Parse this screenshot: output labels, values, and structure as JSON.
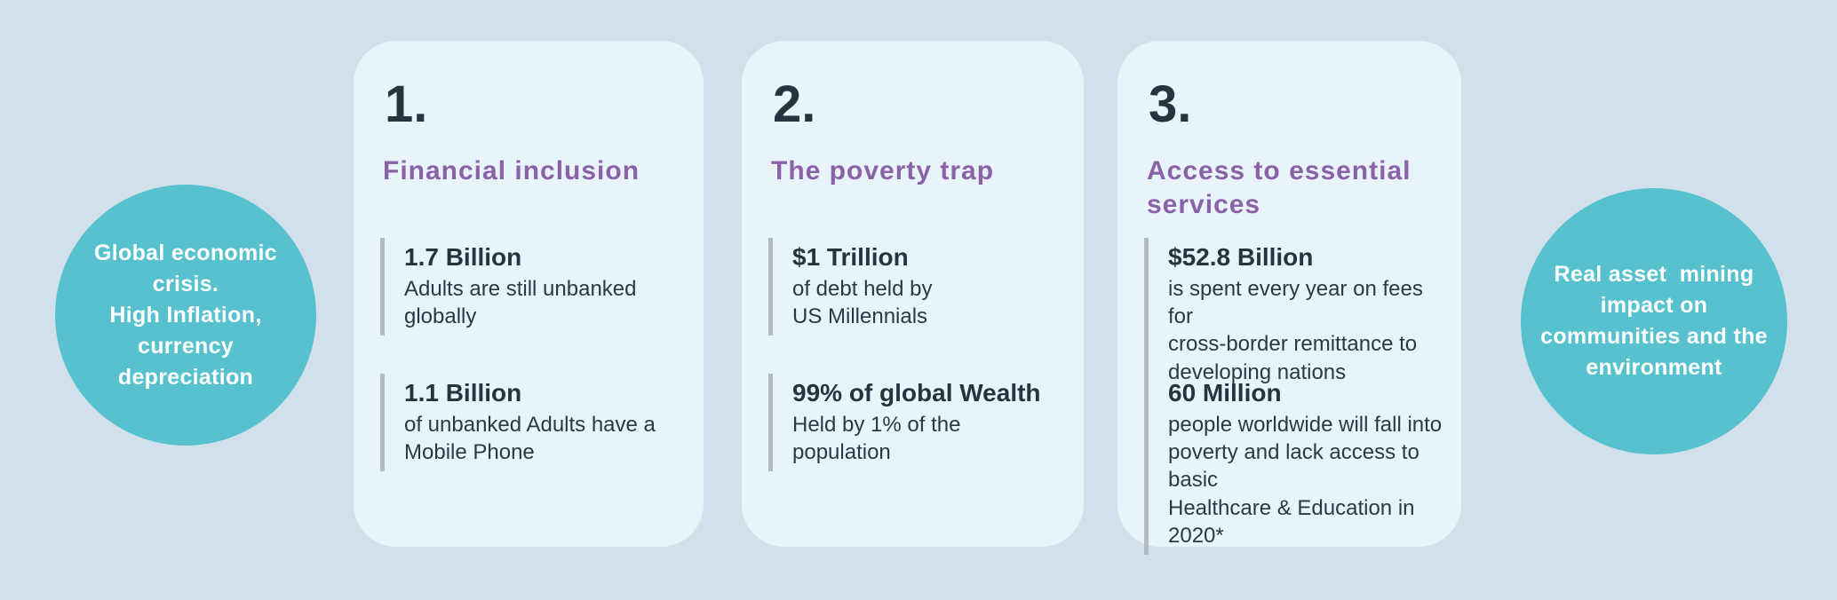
{
  "colors": {
    "background": "#d2e0eb",
    "card_background": "#e9f3fa",
    "accent_teal": "#57c2ce",
    "accent_purple": "#8a62a8",
    "text_dark_navy": "#263440",
    "stat_bar_gray": "#b3bcc2",
    "circle_text": "#ffffff"
  },
  "left_circle": {
    "text": "Global economic\ncrisis.\nHigh Inflation,\ncurrency\ndepreciation"
  },
  "right_circle": {
    "text": "Real asset  mining\nimpact on\ncommunities and the\nenvironment"
  },
  "cards": [
    {
      "number": "1.",
      "title": "Financial inclusion",
      "stats": [
        {
          "value": "1.7 Billion",
          "description": "Adults are still unbanked\nglobally"
        },
        {
          "value": "1.1 Billion",
          "description": "of unbanked Adults have a\nMobile Phone"
        }
      ]
    },
    {
      "number": "2.",
      "title": "The poverty trap",
      "stats": [
        {
          "value": "$1 Trillion",
          "description": "of debt held by\nUS Millennials"
        },
        {
          "value": "99% of global Wealth",
          "description": "Held by 1% of the\npopulation"
        }
      ]
    },
    {
      "number": "3.",
      "title": "Access to essential\nservices",
      "stats": [
        {
          "value": "$52.8 Billion",
          "description": "is spent every year on fees for\ncross-border remittance to\ndeveloping nations"
        },
        {
          "value": "60 Million",
          "description": "people worldwide will fall into\npoverty and lack access to basic\nHealthcare & Education in 2020*"
        }
      ]
    }
  ]
}
